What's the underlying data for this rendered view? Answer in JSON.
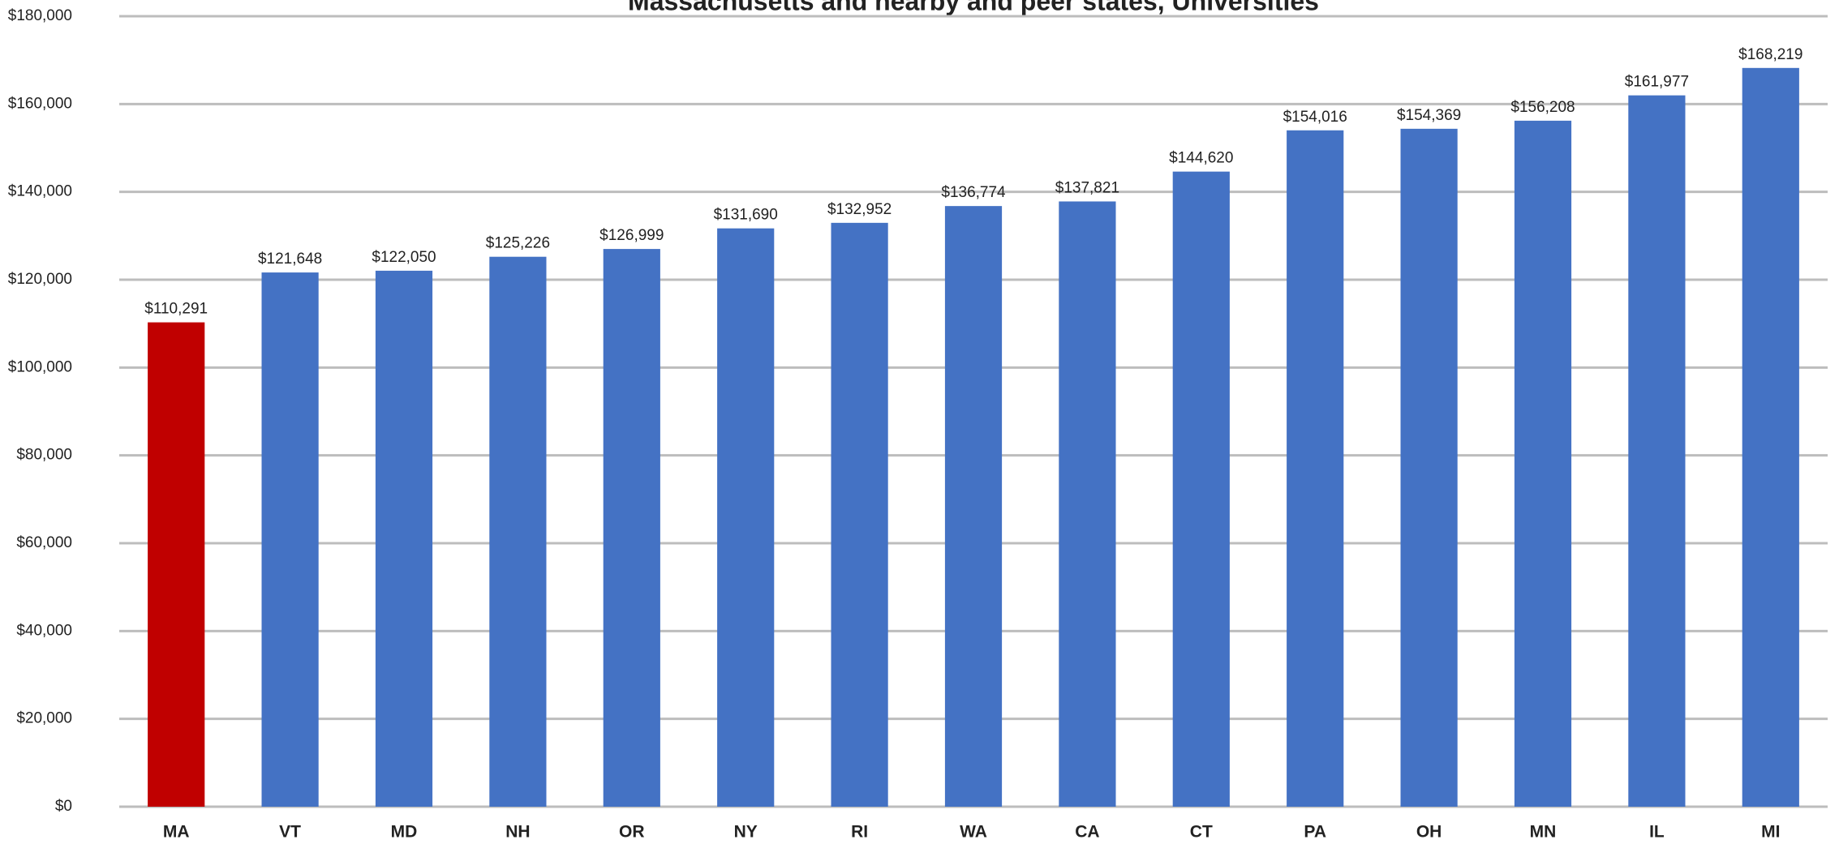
{
  "chart_data": {
    "type": "bar",
    "title": "Massachusetts and nearby and peer states, Universities",
    "categories": [
      "MA",
      "VT",
      "MD",
      "NH",
      "OR",
      "NY",
      "RI",
      "WA",
      "CA",
      "CT",
      "PA",
      "OH",
      "MN",
      "IL",
      "MI"
    ],
    "values": [
      110291,
      121648,
      122050,
      125226,
      126999,
      131690,
      132952,
      136774,
      137821,
      144620,
      154016,
      154369,
      156208,
      161977,
      168219
    ],
    "value_labels": [
      "$110,291",
      "$121,648",
      "$122,050",
      "$125,226",
      "$126,999",
      "$131,690",
      "$132,952",
      "$136,774",
      "$137,821",
      "$144,620",
      "$154,016",
      "$154,369",
      "$156,208",
      "$161,977",
      "$168,219"
    ],
    "colors": [
      "#c00000",
      "#4472c4",
      "#4472c4",
      "#4472c4",
      "#4472c4",
      "#4472c4",
      "#4472c4",
      "#4472c4",
      "#4472c4",
      "#4472c4",
      "#4472c4",
      "#4472c4",
      "#4472c4",
      "#4472c4",
      "#4472c4"
    ],
    "ylim": [
      0,
      180000
    ],
    "yticks": [
      {
        "value": 0,
        "label": "$0"
      },
      {
        "value": 20000,
        "label": "$20,000"
      },
      {
        "value": 40000,
        "label": "$40,000"
      },
      {
        "value": 60000,
        "label": "$60,000"
      },
      {
        "value": 80000,
        "label": "$80,000"
      },
      {
        "value": 100000,
        "label": "$100,000"
      },
      {
        "value": 120000,
        "label": "$120,000"
      },
      {
        "value": 140000,
        "label": "$140,000"
      },
      {
        "value": 160000,
        "label": "$160,000"
      },
      {
        "value": 180000,
        "label": "$180,000"
      }
    ],
    "grid": true
  }
}
